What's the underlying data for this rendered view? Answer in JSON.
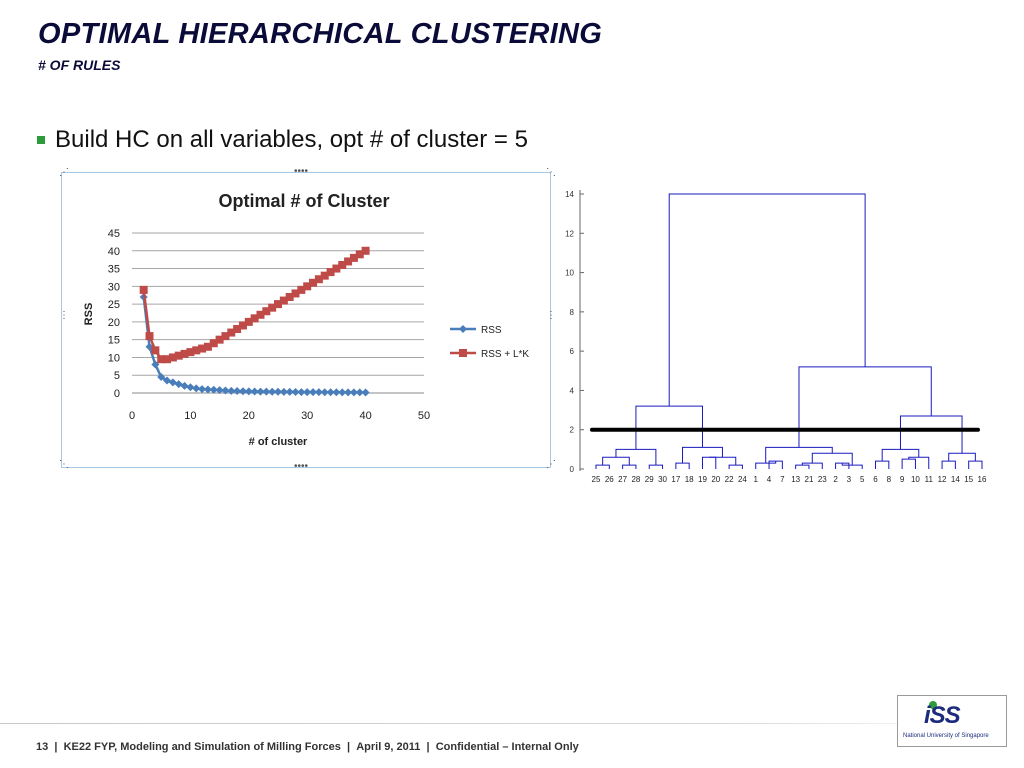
{
  "slide": {
    "title": "OPTIMAL HIERARCHICAL CLUSTERING",
    "subtitle": "# OF RULES",
    "bullet": "Build HC on all variables, opt # of cluster = 5"
  },
  "chart_data": [
    {
      "type": "line",
      "title": "Optimal # of Cluster",
      "xlabel": "# of cluster",
      "ylabel": "RSS",
      "xlim": [
        0,
        50
      ],
      "ylim": [
        0,
        45
      ],
      "x_ticks": [
        "0",
        "10",
        "20",
        "30",
        "40",
        "50"
      ],
      "y_ticks": [
        "0",
        "5",
        "10",
        "15",
        "20",
        "25",
        "30",
        "35",
        "40",
        "45"
      ],
      "grid": true,
      "legend_position": "right",
      "x": [
        2,
        3,
        4,
        5,
        6,
        7,
        8,
        9,
        10,
        11,
        12,
        13,
        14,
        15,
        16,
        17,
        18,
        19,
        20,
        21,
        22,
        23,
        24,
        25,
        26,
        27,
        28,
        29,
        30,
        31,
        32,
        33,
        34,
        35,
        36,
        37,
        38,
        39,
        40
      ],
      "series": [
        {
          "name": "RSS",
          "color": "#4a7ebb",
          "marker": "diamond",
          "values": [
            27.0,
            13.0,
            8.0,
            4.5,
            3.5,
            3.0,
            2.5,
            2.0,
            1.6,
            1.3,
            1.1,
            1.0,
            0.9,
            0.8,
            0.7,
            0.6,
            0.55,
            0.5,
            0.45,
            0.42,
            0.4,
            0.38,
            0.36,
            0.34,
            0.32,
            0.3,
            0.28,
            0.26,
            0.25,
            0.24,
            0.23,
            0.22,
            0.21,
            0.2,
            0.19,
            0.18,
            0.17,
            0.16,
            0.15
          ]
        },
        {
          "name": "RSS + L*K",
          "color": "#be4b48",
          "marker": "square",
          "values": [
            29.0,
            16.0,
            12.0,
            9.5,
            9.5,
            10.0,
            10.5,
            11.0,
            11.5,
            12.0,
            12.5,
            13.0,
            14.0,
            15.0,
            16.0,
            17.0,
            18.0,
            19.0,
            20.0,
            21.0,
            22.0,
            23.0,
            24.0,
            25.0,
            26.0,
            27.0,
            28.0,
            29.0,
            30.0,
            31.0,
            32.0,
            33.0,
            34.0,
            35.0,
            36.0,
            37.0,
            38.0,
            39.0,
            40.0
          ]
        }
      ]
    },
    {
      "type": "dendrogram",
      "color": "#1a1abf",
      "cut_line_color": "#000000",
      "cut_height": 2.0,
      "ylim": [
        0,
        14
      ],
      "y_ticks": [
        "0",
        "2",
        "4",
        "6",
        "8",
        "10",
        "12",
        "14"
      ],
      "leaf_labels": [
        "25",
        "26",
        "27",
        "28",
        "29",
        "30",
        "17",
        "18",
        "19",
        "20",
        "22",
        "24",
        "1",
        "4",
        "7",
        "13",
        "21",
        "23",
        "2",
        "3",
        "5",
        "6",
        "8",
        "9",
        "10",
        "11",
        "12",
        "14",
        "15",
        "16"
      ],
      "root_height": 14.0
    }
  ],
  "footer": {
    "page": "13",
    "sep": "|",
    "project": "KE22 FYP, Modeling and Simulation of Milling Forces",
    "date": "April 9, 2011",
    "classification": "Confidential – Internal Only"
  },
  "logo": {
    "mark": "iSS",
    "subtext": "National University of Singapore"
  }
}
